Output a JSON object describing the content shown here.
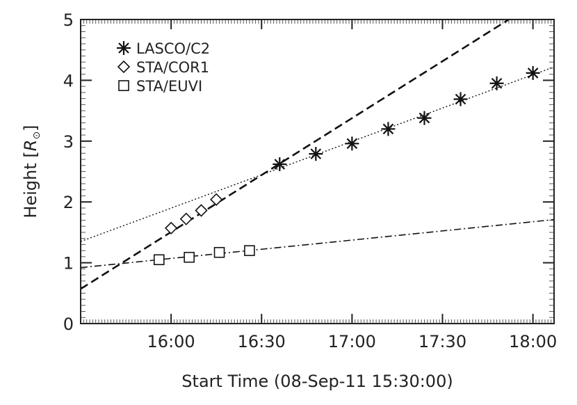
{
  "chart_data": {
    "type": "scatter",
    "xlabel": "Start Time (08-Sep-11 15:30:00)",
    "ylabel_prefix": "Height [",
    "ylabel_symbol": "R",
    "ylabel_suffix": "]",
    "xlim_minutes": [
      0,
      157
    ],
    "ylim": [
      0,
      5
    ],
    "x_ticks": [
      {
        "label": "16:00",
        "minutes": 30
      },
      {
        "label": "16:30",
        "minutes": 60
      },
      {
        "label": "17:00",
        "minutes": 90
      },
      {
        "label": "17:30",
        "minutes": 120
      },
      {
        "label": "18:00",
        "minutes": 150
      }
    ],
    "y_ticks": [
      0,
      1,
      2,
      3,
      4,
      5
    ],
    "legend_position": "top-left",
    "series": [
      {
        "name": "LASCO/C2",
        "marker": "asterisk",
        "points": [
          {
            "t": "16:36",
            "y": 2.62
          },
          {
            "t": "16:48",
            "y": 2.79
          },
          {
            "t": "17:00",
            "y": 2.96
          },
          {
            "t": "17:12",
            "y": 3.2
          },
          {
            "t": "17:24",
            "y": 3.38
          },
          {
            "t": "17:36",
            "y": 3.69
          },
          {
            "t": "17:48",
            "y": 3.95
          },
          {
            "t": "18:00",
            "y": 4.12
          }
        ]
      },
      {
        "name": "STA/COR1",
        "marker": "diamond",
        "points": [
          {
            "t": "16:00",
            "y": 1.57
          },
          {
            "t": "16:05",
            "y": 1.72
          },
          {
            "t": "16:10",
            "y": 1.86
          },
          {
            "t": "16:15",
            "y": 2.04
          }
        ]
      },
      {
        "name": "STA/EUVI",
        "marker": "square",
        "points": [
          {
            "t": "15:56",
            "y": 1.05
          },
          {
            "t": "16:06",
            "y": 1.09
          },
          {
            "t": "16:16",
            "y": 1.17
          },
          {
            "t": "16:26",
            "y": 1.2
          }
        ]
      }
    ],
    "fit_lines": [
      {
        "style": "dashed",
        "from": {
          "t": "15:30",
          "y": 0.57
        },
        "to": {
          "t": "17:52",
          "y": 5.0
        }
      },
      {
        "style": "dotted",
        "from": {
          "t": "15:30",
          "y": 1.35
        },
        "to": {
          "t": "18:07",
          "y": 4.22
        }
      },
      {
        "style": "dash-dot",
        "from": {
          "t": "15:30",
          "y": 0.92
        },
        "to": {
          "t": "18:07",
          "y": 1.71
        }
      }
    ]
  }
}
